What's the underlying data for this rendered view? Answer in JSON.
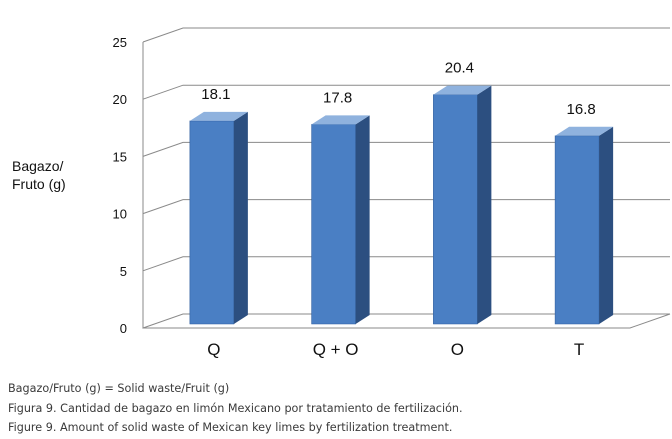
{
  "chart_data": {
    "type": "bar",
    "categories": [
      "Q",
      "Q + O",
      "O",
      "T"
    ],
    "values": [
      18.1,
      17.8,
      20.4,
      16.8
    ],
    "data_labels": [
      "18.1",
      "17.8",
      "20.4",
      "16.8"
    ],
    "ylabel_line1": "Bagazo/",
    "ylabel_line2": "Fruto (g)",
    "xlabel": "",
    "title": "",
    "ylim": [
      0,
      25
    ],
    "yticks": [
      "0",
      "5",
      "10",
      "15",
      "20",
      "25"
    ],
    "grid": true,
    "style": "3d-column",
    "colors": {
      "bar_front": "#4a7fc4",
      "bar_side": "#2c4f80",
      "bar_top": "#8fb2de",
      "grid": "#8a8a8a"
    }
  },
  "caption": {
    "line1": "Bagazo/Fruto (g) = Solid waste/Fruit (g)",
    "line2": "Figura 9. Cantidad de bagazo en limón Mexicano por tratamiento de fertilización.",
    "line3": "Figure 9. Amount of solid waste of Mexican key limes by fertilization treatment."
  }
}
